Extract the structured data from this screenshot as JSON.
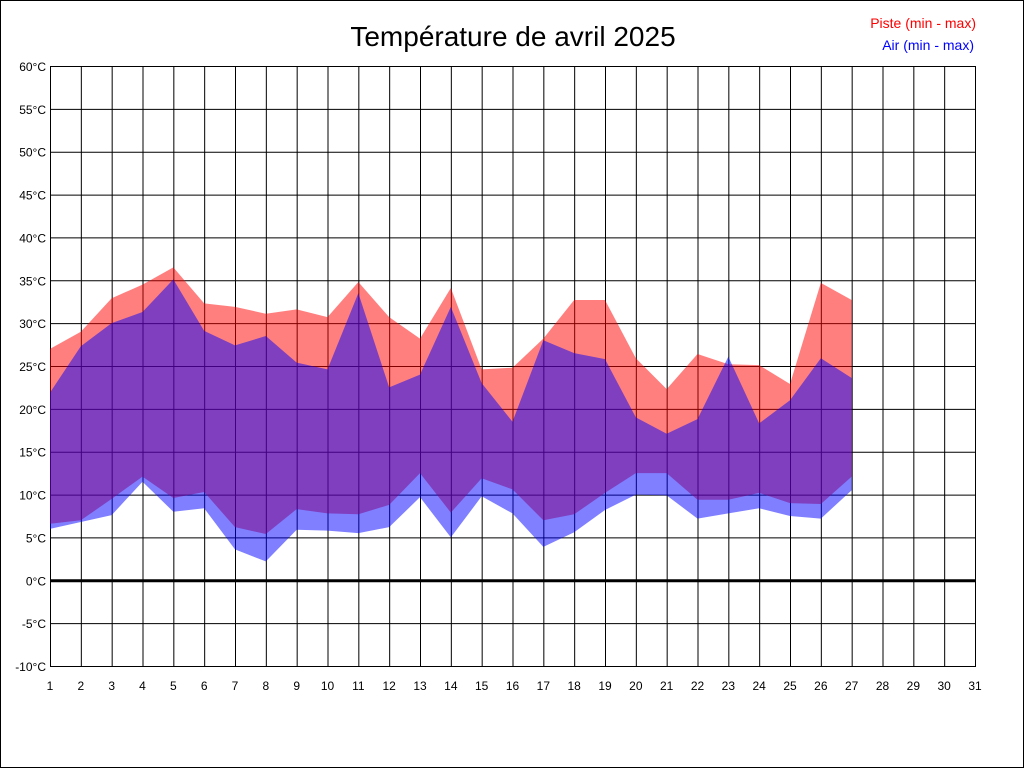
{
  "chart_data": {
    "type": "area",
    "title": "Température de avril 2025",
    "xlabel": "",
    "ylabel": "",
    "x_range": [
      1,
      31
    ],
    "ylim": [
      -10,
      60
    ],
    "y_tick_step": 5,
    "y_tick_suffix": "°C",
    "grid": true,
    "legend_position": "top-right",
    "x": [
      1,
      2,
      3,
      4,
      5,
      6,
      7,
      8,
      9,
      10,
      11,
      12,
      13,
      14,
      15,
      16,
      17,
      18,
      19,
      20,
      21,
      22,
      23,
      24,
      25,
      26,
      27
    ],
    "x_ticks": [
      1,
      2,
      3,
      4,
      5,
      6,
      7,
      8,
      9,
      10,
      11,
      12,
      13,
      14,
      15,
      16,
      17,
      18,
      19,
      20,
      21,
      22,
      23,
      24,
      25,
      26,
      27,
      28,
      29,
      30,
      31
    ],
    "series": [
      {
        "name": "Piste (min - max)",
        "color": "#ff0000",
        "max": [
          27.0,
          29.0,
          32.9,
          34.5,
          36.5,
          32.3,
          31.9,
          31.1,
          31.6,
          30.7,
          34.8,
          30.7,
          28.2,
          34.1,
          24.6,
          24.8,
          28.2,
          32.7,
          32.7,
          25.9,
          22.3,
          26.4,
          25.2,
          25.1,
          22.9,
          34.7,
          32.7
        ],
        "min": [
          6.6,
          7.0,
          9.5,
          12.1,
          9.6,
          10.3,
          6.2,
          5.4,
          8.3,
          7.8,
          7.7,
          8.8,
          12.5,
          7.9,
          11.9,
          10.6,
          7.0,
          7.7,
          10.2,
          12.5,
          12.5,
          9.4,
          9.4,
          10.2,
          9.0,
          8.9,
          12.1
        ]
      },
      {
        "name": "Air (min - max)",
        "color": "#0000ff",
        "max": [
          21.9,
          27.3,
          30.0,
          31.3,
          35.1,
          29.1,
          27.4,
          28.5,
          25.4,
          24.6,
          33.5,
          22.5,
          24.0,
          31.9,
          23.0,
          18.5,
          28.0,
          26.5,
          25.8,
          19.0,
          17.1,
          18.8,
          26.1,
          18.3,
          21.0,
          25.9,
          23.6
        ],
        "min": [
          6.0,
          6.8,
          7.6,
          11.5,
          8.0,
          8.4,
          3.6,
          2.2,
          5.9,
          5.8,
          5.5,
          6.2,
          9.7,
          5.0,
          9.8,
          7.8,
          3.9,
          5.6,
          8.2,
          10.0,
          9.9,
          7.2,
          7.8,
          8.4,
          7.5,
          7.2,
          10.5
        ]
      }
    ]
  }
}
